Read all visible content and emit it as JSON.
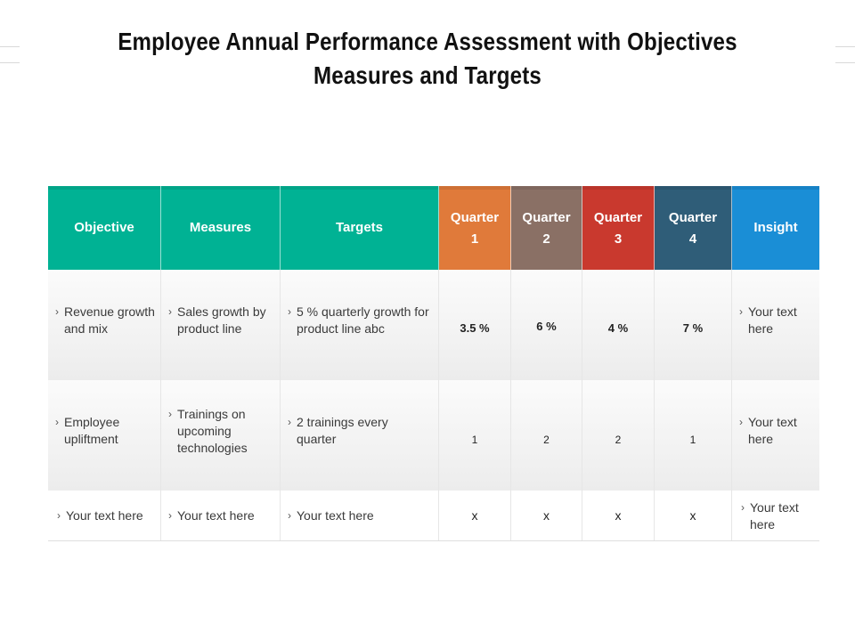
{
  "title_line1": "Employee Annual Performance Assessment with Objectives",
  "title_line2": "Measures and Targets",
  "headers": {
    "objective": "Objective",
    "measures": "Measures",
    "targets": "Targets",
    "q1": "Quarter 1",
    "q2": "Quarter 2",
    "q3": "Quarter 3",
    "q4": "Quarter 4",
    "insight": "Insight"
  },
  "colors": {
    "teal": "#00b294",
    "orange": "#e07a3a",
    "brown": "#8a7065",
    "red": "#c9392e",
    "slate": "#2f5d78",
    "blue": "#1a8ed6"
  },
  "rows": [
    {
      "objective": "Revenue growth and mix",
      "measures": "Sales growth by product line",
      "targets": "5 % quarterly growth for product line abc",
      "q1": "3.5 %",
      "q2": "6 %",
      "q3": "4 %",
      "q4": "7 %",
      "insight": "Your text here"
    },
    {
      "objective": "Employee upliftment",
      "measures": "Trainings on upcoming technologies",
      "targets": "2 trainings every quarter",
      "q1": "1",
      "q2": "2",
      "q3": "2",
      "q4": "1",
      "insight": "Your text here"
    },
    {
      "objective": "Your text here",
      "measures": "Your text here",
      "targets": "Your text here",
      "q1": "x",
      "q2": "x",
      "q3": "x",
      "q4": "x",
      "insight": "Your text here"
    }
  ]
}
